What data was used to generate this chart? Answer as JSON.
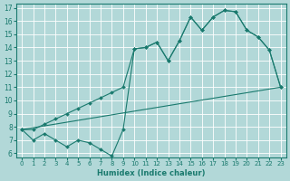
{
  "xlabel": "Humidex (Indice chaleur)",
  "bg_color": "#b2d8d8",
  "grid_color": "#ffffff",
  "line_color": "#1a7a6e",
  "x_min": 0,
  "x_max": 23,
  "y_min": 6,
  "y_max": 17,
  "line1_x": [
    0,
    1,
    2,
    3,
    4,
    5,
    6,
    7,
    8,
    9,
    10,
    11,
    12,
    13,
    14,
    15,
    16,
    17,
    18,
    19,
    20,
    21,
    22,
    23
  ],
  "line1_y": [
    7.8,
    7.0,
    7.5,
    7.0,
    6.5,
    7.0,
    6.8,
    6.3,
    5.8,
    7.8,
    13.9,
    14.0,
    14.4,
    13.0,
    14.5,
    16.3,
    15.3,
    16.3,
    16.8,
    16.7,
    15.3,
    14.8,
    13.8,
    11.0
  ],
  "line2_x": [
    0,
    1,
    2,
    3,
    4,
    5,
    6,
    7,
    8,
    9,
    10,
    11,
    12,
    13,
    14,
    15,
    16,
    17,
    18,
    19,
    20,
    21,
    22,
    23
  ],
  "line2_y": [
    7.8,
    7.8,
    8.2,
    8.6,
    9.0,
    9.4,
    9.8,
    10.2,
    10.6,
    11.0,
    13.9,
    14.0,
    14.4,
    13.0,
    14.5,
    16.3,
    15.3,
    16.3,
    16.8,
    16.7,
    15.3,
    14.8,
    13.8,
    11.0
  ],
  "line3_x": [
    0,
    23
  ],
  "line3_y": [
    7.8,
    11.0
  ],
  "yticks": [
    6,
    7,
    8,
    9,
    10,
    11,
    12,
    13,
    14,
    15,
    16,
    17
  ],
  "xticks": [
    0,
    1,
    2,
    3,
    4,
    5,
    6,
    7,
    8,
    9,
    10,
    11,
    12,
    13,
    14,
    15,
    16,
    17,
    18,
    19,
    20,
    21,
    22,
    23
  ]
}
